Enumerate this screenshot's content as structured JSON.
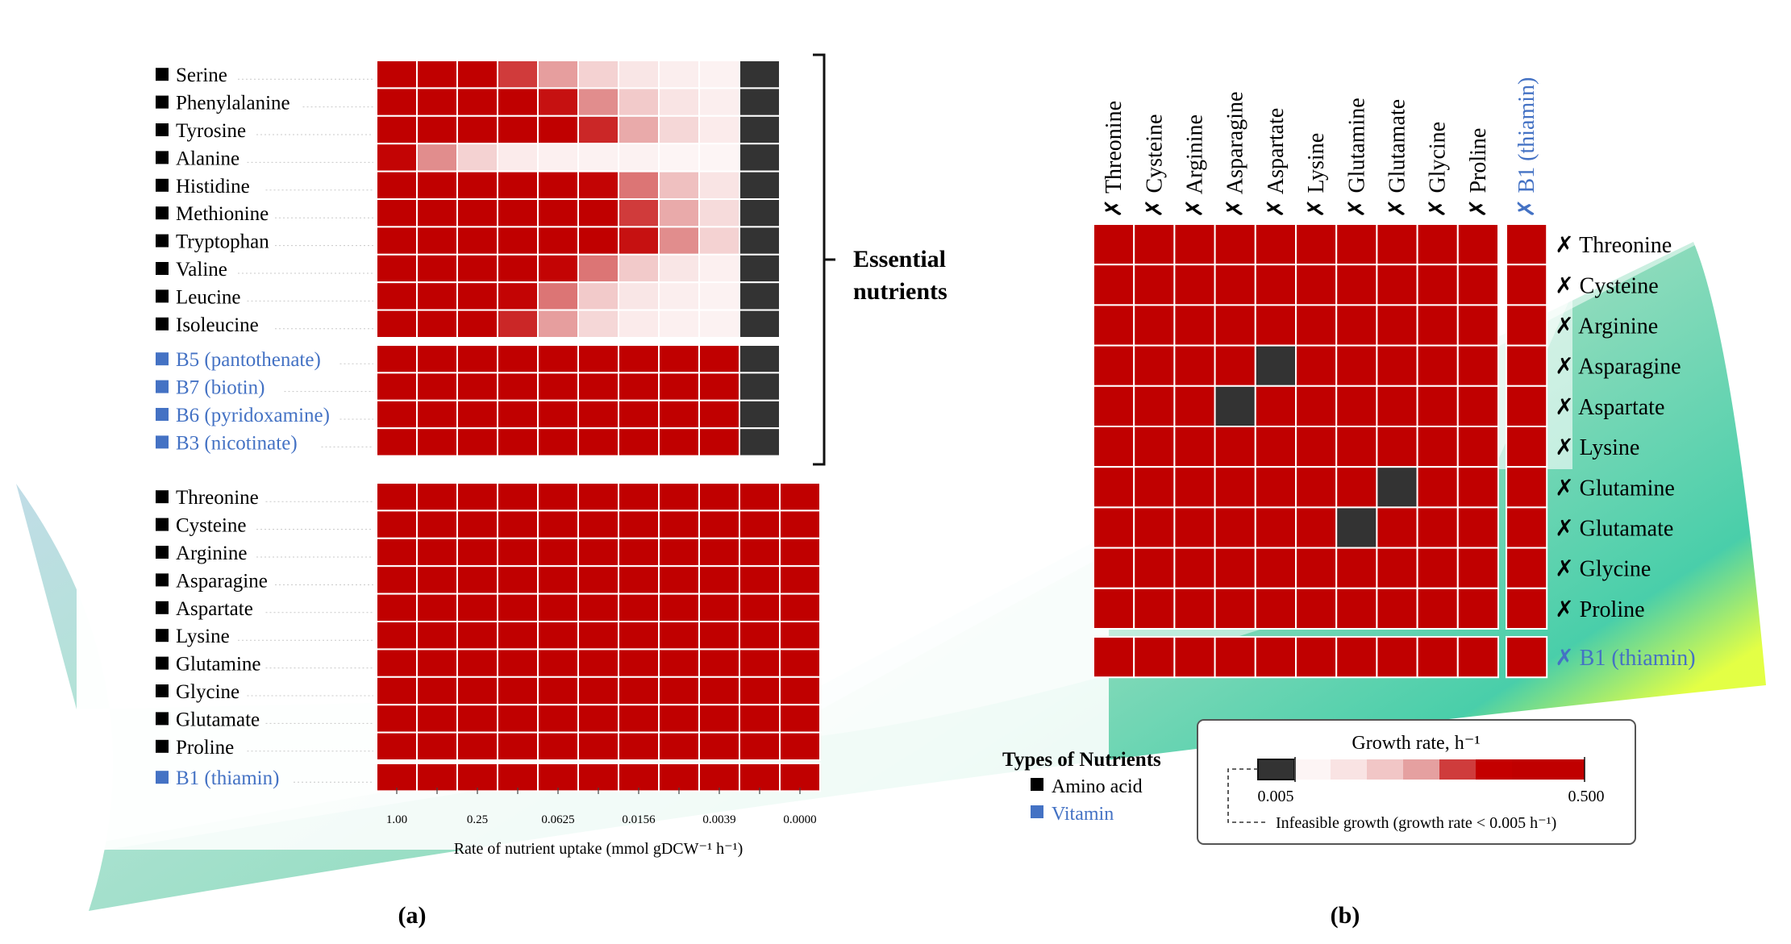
{
  "colors": {
    "infeasible": "#333333",
    "high": "#c00000",
    "amino": "#000000",
    "vitamin": "#4472c4",
    "grid_line": "#ffffff",
    "scale": [
      "#333333",
      "#fdf5f5",
      "#f9e3e3",
      "#f1c6c6",
      "#e5a0a0",
      "#cf3c3c",
      "#c40000",
      "#c00000",
      "#c00000"
    ]
  },
  "chart_data": [
    {
      "type": "heatmap",
      "panel_label": "(a)",
      "xlabel": "Rate of nutrient uptake (mmol gDCW⁻¹ h⁻¹)",
      "tick_labels": [
        "1.00",
        "0.25",
        "0.0625",
        "0.0156",
        "0.0039",
        "0.0000"
      ],
      "bracket_label": [
        "Essential",
        "nutrients"
      ],
      "groups": [
        {
          "name": "essential-amino-acids",
          "rows": [
            {
              "label": "Serine",
              "kind": "amino",
              "values": [
                0.5,
                0.5,
                0.5,
                0.35,
                0.22,
                0.12,
                0.07,
                0.04,
                0.02,
                0.0
              ]
            },
            {
              "label": "Phenylalanine",
              "kind": "amino",
              "values": [
                0.5,
                0.5,
                0.5,
                0.5,
                0.42,
                0.25,
                0.14,
                0.08,
                0.04,
                0.0
              ]
            },
            {
              "label": "Tyrosine",
              "kind": "amino",
              "values": [
                0.5,
                0.5,
                0.5,
                0.5,
                0.5,
                0.38,
                0.2,
                0.11,
                0.05,
                0.0
              ]
            },
            {
              "label": "Alanine",
              "kind": "amino",
              "values": [
                0.45,
                0.25,
                0.12,
                0.05,
                0.03,
                0.02,
                0.02,
                0.01,
                0.01,
                0.0
              ]
            },
            {
              "label": "Histidine",
              "kind": "amino",
              "values": [
                0.5,
                0.5,
                0.5,
                0.5,
                0.5,
                0.45,
                0.28,
                0.16,
                0.08,
                0.0
              ]
            },
            {
              "label": "Methionine",
              "kind": "amino",
              "values": [
                0.5,
                0.5,
                0.5,
                0.5,
                0.5,
                0.5,
                0.35,
                0.2,
                0.1,
                0.0
              ]
            },
            {
              "label": "Tryptophan",
              "kind": "amino",
              "values": [
                0.5,
                0.5,
                0.5,
                0.5,
                0.5,
                0.5,
                0.42,
                0.25,
                0.12,
                0.0
              ]
            },
            {
              "label": "Valine",
              "kind": "amino",
              "values": [
                0.5,
                0.5,
                0.5,
                0.5,
                0.45,
                0.28,
                0.14,
                0.07,
                0.03,
                0.0
              ]
            },
            {
              "label": "Leucine",
              "kind": "amino",
              "values": [
                0.5,
                0.5,
                0.5,
                0.45,
                0.28,
                0.14,
                0.07,
                0.04,
                0.02,
                0.0
              ]
            },
            {
              "label": "Isoleucine",
              "kind": "amino",
              "values": [
                0.5,
                0.5,
                0.5,
                0.38,
                0.22,
                0.11,
                0.05,
                0.03,
                0.02,
                0.0
              ]
            }
          ]
        },
        {
          "name": "essential-vitamins",
          "rows": [
            {
              "label": "B5 (pantothenate)",
              "kind": "vitamin",
              "values": [
                0.5,
                0.5,
                0.5,
                0.5,
                0.5,
                0.5,
                0.5,
                0.5,
                0.5,
                0.0
              ]
            },
            {
              "label": "B7 (biotin)",
              "kind": "vitamin",
              "values": [
                0.5,
                0.5,
                0.5,
                0.5,
                0.5,
                0.5,
                0.5,
                0.5,
                0.5,
                0.0
              ]
            },
            {
              "label": "B6 (pyridoxamine)",
              "kind": "vitamin",
              "values": [
                0.5,
                0.5,
                0.5,
                0.5,
                0.5,
                0.5,
                0.5,
                0.5,
                0.5,
                0.0
              ]
            },
            {
              "label": "B3 (nicotinate)",
              "kind": "vitamin",
              "values": [
                0.5,
                0.5,
                0.5,
                0.5,
                0.5,
                0.5,
                0.5,
                0.5,
                0.5,
                0.0
              ]
            }
          ]
        },
        {
          "name": "nonessential-amino-acids",
          "rows": [
            {
              "label": "Threonine",
              "kind": "amino",
              "values": [
                0.5,
                0.5,
                0.5,
                0.5,
                0.5,
                0.5,
                0.5,
                0.5,
                0.5,
                0.5,
                0.5
              ]
            },
            {
              "label": "Cysteine",
              "kind": "amino",
              "values": [
                0.5,
                0.5,
                0.5,
                0.5,
                0.5,
                0.5,
                0.5,
                0.5,
                0.5,
                0.5,
                0.5
              ]
            },
            {
              "label": "Arginine",
              "kind": "amino",
              "values": [
                0.5,
                0.5,
                0.5,
                0.5,
                0.5,
                0.5,
                0.5,
                0.5,
                0.5,
                0.5,
                0.5
              ]
            },
            {
              "label": "Asparagine",
              "kind": "amino",
              "values": [
                0.5,
                0.5,
                0.5,
                0.5,
                0.5,
                0.5,
                0.5,
                0.5,
                0.5,
                0.5,
                0.5
              ]
            },
            {
              "label": "Aspartate",
              "kind": "amino",
              "values": [
                0.5,
                0.5,
                0.5,
                0.5,
                0.5,
                0.5,
                0.5,
                0.5,
                0.5,
                0.5,
                0.5
              ]
            },
            {
              "label": "Lysine",
              "kind": "amino",
              "values": [
                0.5,
                0.5,
                0.5,
                0.5,
                0.5,
                0.5,
                0.5,
                0.5,
                0.5,
                0.5,
                0.5
              ]
            },
            {
              "label": "Glutamine",
              "kind": "amino",
              "values": [
                0.5,
                0.5,
                0.5,
                0.5,
                0.5,
                0.5,
                0.5,
                0.5,
                0.5,
                0.5,
                0.5
              ]
            },
            {
              "label": "Glycine",
              "kind": "amino",
              "values": [
                0.5,
                0.5,
                0.5,
                0.5,
                0.5,
                0.5,
                0.5,
                0.5,
                0.5,
                0.5,
                0.5
              ]
            },
            {
              "label": "Glutamate",
              "kind": "amino",
              "values": [
                0.5,
                0.5,
                0.5,
                0.5,
                0.5,
                0.5,
                0.5,
                0.5,
                0.5,
                0.5,
                0.5
              ]
            },
            {
              "label": "Proline",
              "kind": "amino",
              "values": [
                0.5,
                0.5,
                0.5,
                0.5,
                0.5,
                0.5,
                0.5,
                0.5,
                0.5,
                0.5,
                0.5
              ]
            }
          ]
        },
        {
          "name": "nonessential-vitamins",
          "rows": [
            {
              "label": "B1 (thiamin)",
              "kind": "vitamin",
              "values": [
                0.5,
                0.5,
                0.5,
                0.5,
                0.5,
                0.5,
                0.5,
                0.5,
                0.5,
                0.5,
                0.5
              ]
            }
          ]
        }
      ]
    },
    {
      "type": "heatmap",
      "panel_label": "(b)",
      "prefix": "✗",
      "labels": [
        {
          "label": "Threonine",
          "kind": "amino"
        },
        {
          "label": "Cysteine",
          "kind": "amino"
        },
        {
          "label": "Arginine",
          "kind": "amino"
        },
        {
          "label": "Asparagine",
          "kind": "amino"
        },
        {
          "label": "Aspartate",
          "kind": "amino"
        },
        {
          "label": "Lysine",
          "kind": "amino"
        },
        {
          "label": "Glutamine",
          "kind": "amino"
        },
        {
          "label": "Glutamate",
          "kind": "amino"
        },
        {
          "label": "Glycine",
          "kind": "amino"
        },
        {
          "label": "Proline",
          "kind": "amino"
        },
        {
          "label": "B1 (thiamin)",
          "kind": "vitamin"
        }
      ],
      "matrix": [
        [
          0.5,
          0.5,
          0.5,
          0.5,
          0.5,
          0.5,
          0.5,
          0.5,
          0.5,
          0.5,
          0.5
        ],
        [
          0.5,
          0.5,
          0.5,
          0.5,
          0.5,
          0.5,
          0.5,
          0.5,
          0.5,
          0.5,
          0.5
        ],
        [
          0.5,
          0.5,
          0.5,
          0.5,
          0.5,
          0.5,
          0.5,
          0.5,
          0.5,
          0.5,
          0.5
        ],
        [
          0.5,
          0.5,
          0.5,
          0.5,
          0.0,
          0.5,
          0.5,
          0.5,
          0.5,
          0.5,
          0.5
        ],
        [
          0.5,
          0.5,
          0.5,
          0.0,
          0.5,
          0.5,
          0.5,
          0.5,
          0.5,
          0.5,
          0.5
        ],
        [
          0.5,
          0.5,
          0.5,
          0.5,
          0.5,
          0.5,
          0.5,
          0.5,
          0.5,
          0.5,
          0.5
        ],
        [
          0.5,
          0.5,
          0.5,
          0.5,
          0.5,
          0.5,
          0.5,
          0.0,
          0.5,
          0.5,
          0.5
        ],
        [
          0.5,
          0.5,
          0.5,
          0.5,
          0.5,
          0.5,
          0.0,
          0.5,
          0.5,
          0.5,
          0.5
        ],
        [
          0.5,
          0.5,
          0.5,
          0.5,
          0.5,
          0.5,
          0.5,
          0.5,
          0.5,
          0.5,
          0.5
        ],
        [
          0.5,
          0.5,
          0.5,
          0.5,
          0.5,
          0.5,
          0.5,
          0.5,
          0.5,
          0.5,
          0.5
        ],
        [
          0.5,
          0.5,
          0.5,
          0.5,
          0.5,
          0.5,
          0.5,
          0.5,
          0.5,
          0.5,
          0.5
        ]
      ]
    }
  ],
  "legend": {
    "types_title": "Types of Nutrients",
    "types": [
      {
        "label": "Amino acid",
        "kind": "amino"
      },
      {
        "label": "Vitamin",
        "kind": "vitamin"
      }
    ],
    "colorbar_title": "Growth rate, h⁻¹",
    "colorbar_min": "0.005",
    "colorbar_max": "0.500",
    "infeasible_note": "Infeasible growth (growth rate < 0.005 h⁻¹)"
  }
}
